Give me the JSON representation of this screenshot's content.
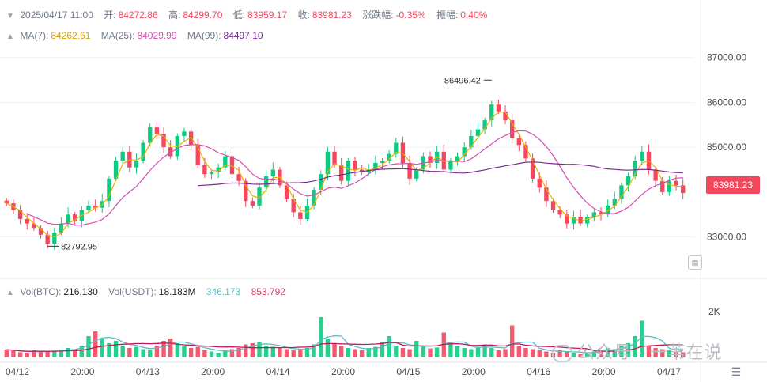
{
  "ohlc_bar": {
    "date": "2025/04/17 11:00",
    "open_label": "开:",
    "open": "84272.86",
    "high_label": "高:",
    "high": "84299.70",
    "low_label": "低:",
    "low": "83959.17",
    "close_label": "收:",
    "close": "83981.23",
    "change_label": "涨跌幅:",
    "change": "-0.35%",
    "amplitude_label": "振幅:",
    "amplitude": "0.40%"
  },
  "ma_bar": {
    "ma7_label": "MA(7):",
    "ma7": "84262.61",
    "ma25_label": "MA(25):",
    "ma25": "84029.99",
    "ma99_label": "MA(99):",
    "ma99": "84497.10"
  },
  "vol_bar": {
    "vol_btc_label": "Vol(BTC):",
    "vol_btc": "216.130",
    "vol_usdt_label": "Vol(USDT):",
    "vol_usdt": "18.183M",
    "vol_ma1": "346.173",
    "vol_ma2": "853.792"
  },
  "current_price": "83981.23",
  "high_marker": "86496.42",
  "low_marker": "82792.95",
  "price_axis": [
    "87000.00",
    "86000.00",
    "85000.00",
    "83000.00"
  ],
  "volume_axis": [
    "2K"
  ],
  "time_axis": [
    "04/12",
    "20:00",
    "04/13",
    "20:00",
    "04/14",
    "20:00",
    "04/15",
    "20:00",
    "04/16",
    "20:00",
    "04/17"
  ],
  "watermark": "公众号 · 一苇在说",
  "colors": {
    "up": "#0ecb81",
    "down": "#f6465d",
    "ma7": "#e8b100",
    "ma25": "#d44fb4",
    "ma99": "#7b2a8f"
  },
  "chart_data": {
    "type": "candlestick",
    "xlabel": "",
    "ylabel": "",
    "ylim": [
      82200,
      87400
    ],
    "x_ticks": [
      "04/12",
      "20:00",
      "04/13",
      "20:00",
      "04/14",
      "20:00",
      "04/15",
      "20:00",
      "04/16",
      "20:00",
      "04/17"
    ],
    "candles_close": [
      83750,
      83600,
      83400,
      83300,
      83200,
      83050,
      82850,
      83100,
      83300,
      83500,
      83350,
      83600,
      83700,
      83650,
      83800,
      84300,
      84700,
      84900,
      84550,
      84700,
      85100,
      85450,
      85300,
      85000,
      84800,
      85250,
      85350,
      85050,
      84600,
      84400,
      84450,
      84550,
      84800,
      84400,
      84250,
      83800,
      83700,
      84100,
      84350,
      84500,
      84150,
      83850,
      83550,
      83400,
      83700,
      84050,
      84400,
      84900,
      84600,
      84250,
      84700,
      84500,
      84450,
      84500,
      84650,
      84700,
      84850,
      85100,
      84650,
      84300,
      84500,
      84800,
      84650,
      84900,
      84500,
      84700,
      84800,
      85000,
      85250,
      85400,
      85600,
      85950,
      85800,
      85600,
      85200,
      85050,
      84750,
      84300,
      84100,
      83800,
      83600,
      83500,
      83300,
      83450,
      83300,
      83450,
      83550,
      83500,
      83700,
      83850,
      84150,
      84350,
      84700,
      84900,
      84500,
      84250,
      84000,
      84250,
      84150,
      83981
    ],
    "volume": [
      330,
      280,
      220,
      200,
      300,
      260,
      240,
      280,
      320,
      400,
      350,
      500,
      900,
      1100,
      800,
      600,
      700,
      500,
      400,
      450,
      350,
      300,
      500,
      700,
      800,
      600,
      500,
      400,
      450,
      300,
      250,
      200,
      300,
      350,
      400,
      550,
      600,
      650,
      500,
      450,
      400,
      350,
      300,
      350,
      400,
      550,
      1700,
      800,
      600,
      500,
      400,
      350,
      300,
      400,
      450,
      650,
      900,
      500,
      400,
      350,
      700,
      450,
      380,
      420,
      1050,
      650,
      500,
      400,
      350,
      450,
      550,
      400,
      300,
      350,
      1350,
      500,
      400,
      350,
      300,
      250,
      200,
      300,
      250,
      200,
      150,
      200,
      250,
      300,
      400,
      350,
      500,
      600,
      900,
      1550,
      500,
      400,
      350,
      300,
      250,
      216
    ],
    "series": [
      {
        "name": "MA(7)",
        "value": "84262.61"
      },
      {
        "name": "MA(25)",
        "value": "84029.99"
      },
      {
        "name": "MA(99)",
        "value": "84497.10"
      }
    ]
  }
}
